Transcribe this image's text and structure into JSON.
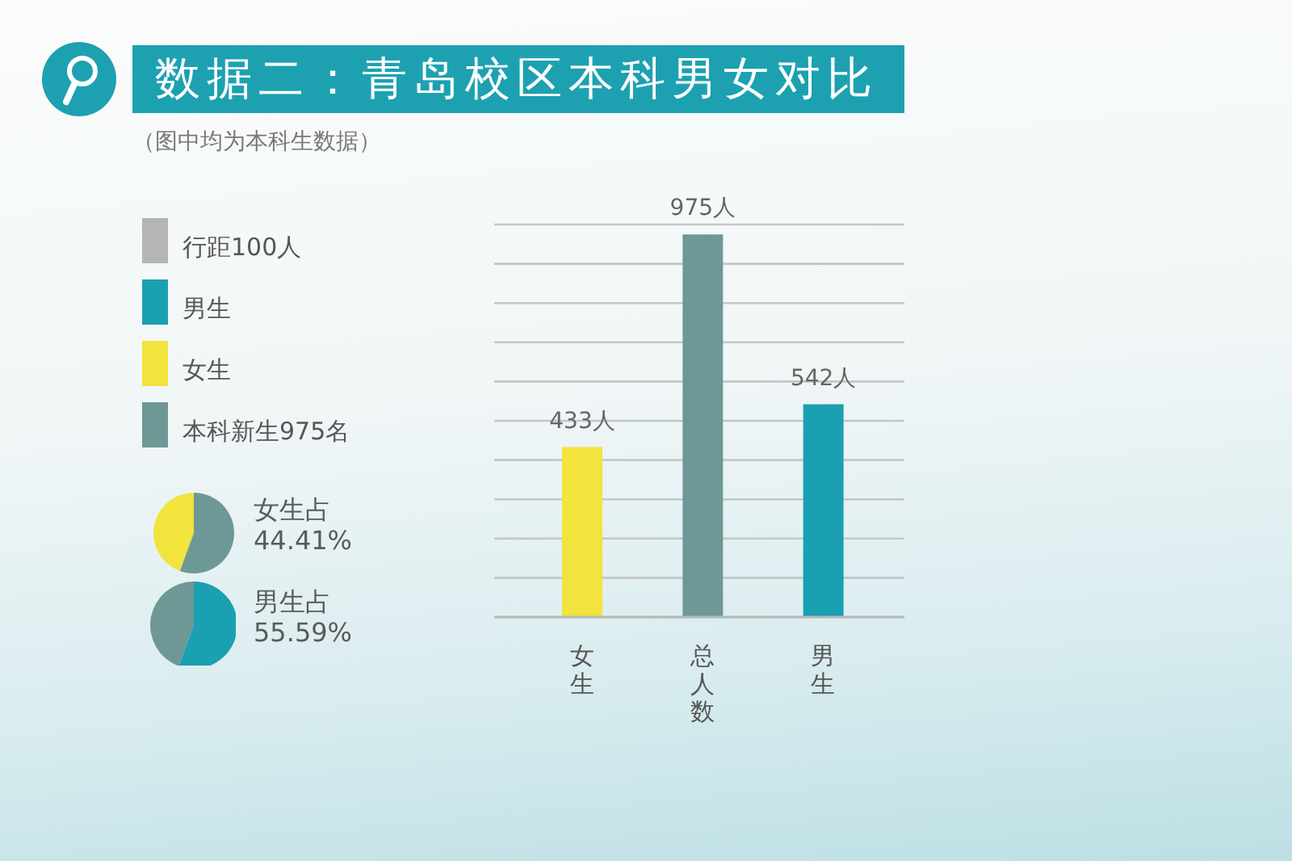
{
  "chart_data": [
    {
      "type": "bar",
      "title": "数据二：青岛校区本科男女对比",
      "subtitle": "（图中均为本科生数据）",
      "categories": [
        "女生",
        "总人数",
        "男生"
      ],
      "series": [
        {
          "name": "男生",
          "color": "#1aa0b0",
          "values": [
            null,
            null,
            542
          ],
          "value_labels": [
            null,
            null,
            "542人"
          ]
        },
        {
          "name": "女生",
          "color": "#f2e33d",
          "values": [
            433,
            null,
            null
          ],
          "value_labels": [
            "433人",
            null,
            null
          ]
        },
        {
          "name": "本科新生975名",
          "color": "#6e9896",
          "values": [
            null,
            975,
            null
          ],
          "value_labels": [
            null,
            "975人",
            null
          ]
        }
      ],
      "ylim": [
        0,
        1000
      ],
      "yticks": [
        {
          "value": 0,
          "label": null
        },
        {
          "value": 100,
          "label": null
        },
        {
          "value": 200,
          "label": null
        },
        {
          "value": 300,
          "label": null
        },
        {
          "value": 400,
          "label": null
        },
        {
          "value": 500,
          "label": null
        },
        {
          "value": 600,
          "label": null
        },
        {
          "value": 700,
          "label": null
        },
        {
          "value": 800,
          "label": null
        },
        {
          "value": 900,
          "label": null
        },
        {
          "value": 1000,
          "label": null
        }
      ],
      "tick_labels": "x",
      "grid": "y",
      "legend": "left",
      "annotations": [
        "行距100人"
      ]
    },
    {
      "type": "pie",
      "title": "女生占",
      "subtitle": "44.41%",
      "categories": [
        null,
        null
      ],
      "values": [
        44.41,
        55.59
      ],
      "colors": [
        "#f2e33d",
        "#6e9896"
      ]
    },
    {
      "type": "pie",
      "title": "男生占",
      "subtitle": "55.59%",
      "categories": [
        null,
        null
      ],
      "values": [
        44.41,
        55.59
      ],
      "colors": [
        "#6e9896",
        "#1aa0b0"
      ]
    }
  ]
}
